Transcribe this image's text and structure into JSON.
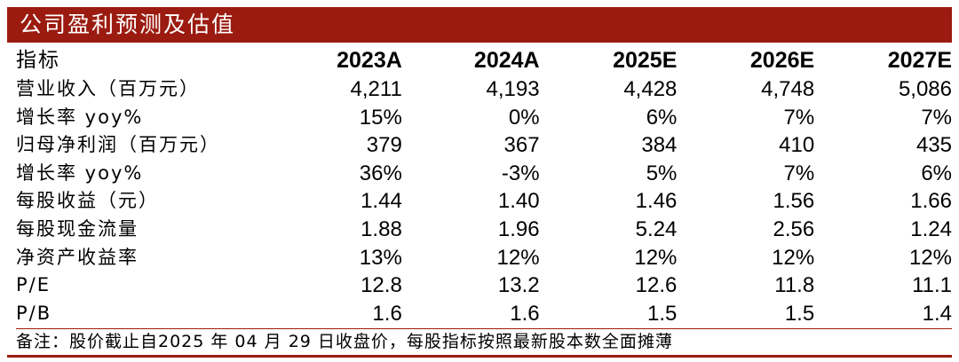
{
  "title": "公司盈利预测及估值",
  "table": {
    "headers": [
      "指标",
      "2023A",
      "2024A",
      "2025E",
      "2026E",
      "2027E"
    ],
    "rows": [
      {
        "label": "营业收入（百万元）",
        "values": [
          "4,211",
          "4,193",
          "4,428",
          "4,748",
          "5,086"
        ]
      },
      {
        "label": "增长率 yoy%",
        "values": [
          "15%",
          "0%",
          "6%",
          "7%",
          "7%"
        ]
      },
      {
        "label": "归母净利润（百万元）",
        "values": [
          "379",
          "367",
          "384",
          "410",
          "435"
        ]
      },
      {
        "label": "增长率 yoy%",
        "values": [
          "36%",
          "-3%",
          "5%",
          "7%",
          "6%"
        ]
      },
      {
        "label": "每股收益（元）",
        "values": [
          "1.44",
          "1.40",
          "1.46",
          "1.56",
          "1.66"
        ]
      },
      {
        "label": "每股现金流量",
        "values": [
          "1.88",
          "1.96",
          "5.24",
          "2.56",
          "1.24"
        ]
      },
      {
        "label": "净资产收益率",
        "values": [
          "13%",
          "12%",
          "12%",
          "12%",
          "12%"
        ]
      },
      {
        "label": "P/E",
        "values": [
          "12.8",
          "13.2",
          "12.6",
          "11.8",
          "11.1"
        ]
      },
      {
        "label": "P/B",
        "values": [
          "1.6",
          "1.6",
          "1.5",
          "1.5",
          "1.4"
        ]
      }
    ]
  },
  "footnote": "备注：股价截止自2025 年 04 月 29 日收盘价，每股指标按照最新股本数全面摊薄",
  "colors": {
    "accent": "#9b1b10",
    "title_text": "#ffffff"
  }
}
